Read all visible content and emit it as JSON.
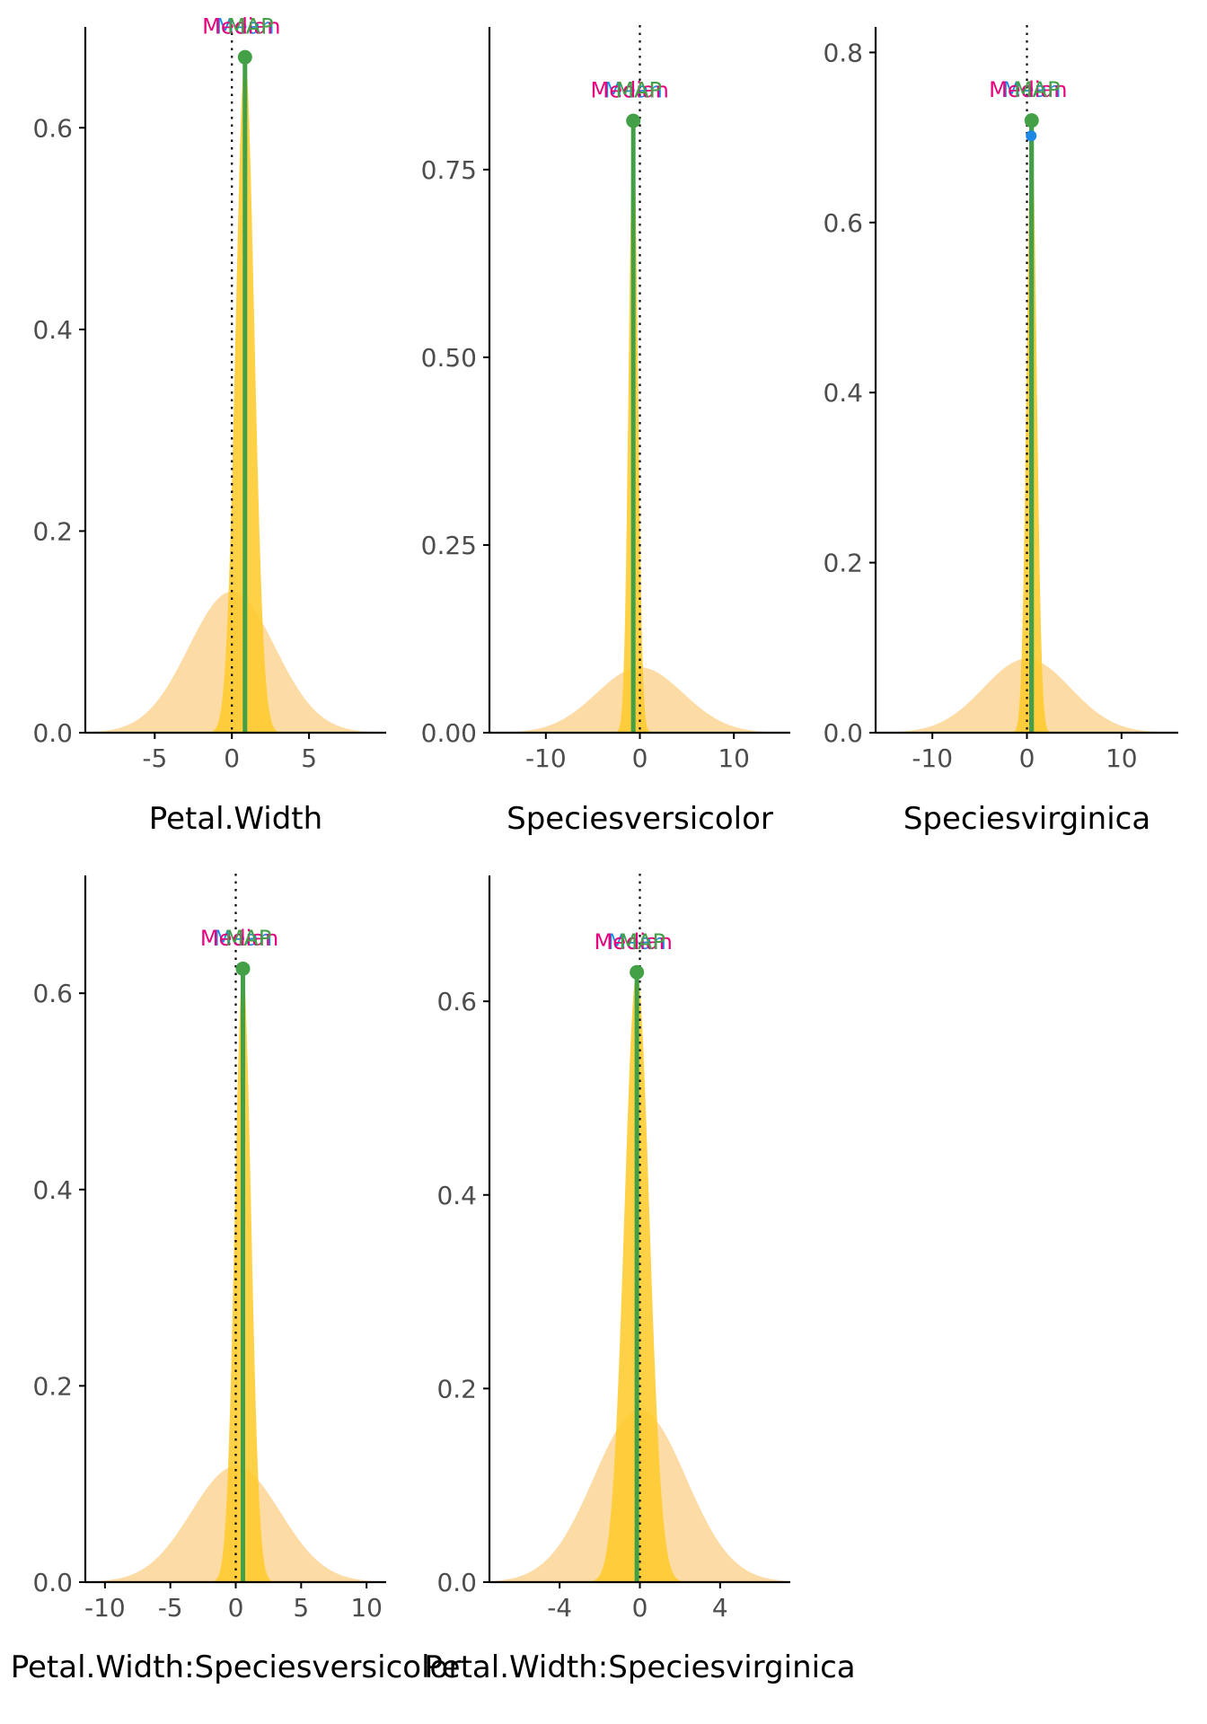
{
  "colors": {
    "prior": "#FDD9A0",
    "posterior": "#FFCB2E",
    "mean": "#E6007E",
    "median": "#1E88E5",
    "map": "#43A047",
    "axis": "#000000",
    "zero_line": "#000000"
  },
  "chart_data": [
    {
      "type": "area",
      "xlabel": "Petal.Width",
      "xlim": [
        -9.5,
        10
      ],
      "ylim": [
        0,
        0.7
      ],
      "xticks": [
        -5,
        0,
        5
      ],
      "xtick_labels": [
        "-5",
        "0",
        "5"
      ],
      "yticks": [
        0,
        0.2,
        0.4,
        0.6
      ],
      "ytick_labels": [
        "0.0",
        "0.2",
        "0.4",
        "0.6"
      ],
      "prior": {
        "center": 0,
        "sd": 2.8,
        "peak": 0.14
      },
      "posterior": {
        "center": 0.85,
        "sd": 0.6,
        "peak": 0.67
      },
      "indicators": {
        "mean": 0.85,
        "median": 0.85,
        "map": 0.85,
        "peak": 0.67
      },
      "indicator_labels": [
        "Mean",
        "Median",
        "MAP"
      ]
    },
    {
      "type": "area",
      "xlabel": "Speciesversicolor",
      "xlim": [
        -16,
        16
      ],
      "ylim": [
        0,
        0.94
      ],
      "xticks": [
        -10,
        0,
        10
      ],
      "xtick_labels": [
        "-10",
        "0",
        "10"
      ],
      "yticks": [
        0,
        0.25,
        0.5,
        0.75
      ],
      "ytick_labels": [
        "0.00",
        "0.25",
        "0.50",
        "0.75"
      ],
      "prior": {
        "center": 0,
        "sd": 4.6,
        "peak": 0.087
      },
      "posterior": {
        "center": -0.7,
        "sd": 0.48,
        "peak": 0.815
      },
      "indicators": {
        "mean": -0.7,
        "median": -0.7,
        "map": -0.7,
        "peak": 0.815
      },
      "indicator_labels": [
        "Mean",
        "Median",
        "MAP"
      ]
    },
    {
      "type": "area",
      "xlabel": "Speciesvirginica",
      "xlim": [
        -16,
        16
      ],
      "ylim": [
        0,
        0.83
      ],
      "xticks": [
        -10,
        0,
        10
      ],
      "xtick_labels": [
        "-10",
        "0",
        "10"
      ],
      "yticks": [
        0,
        0.2,
        0.4,
        0.6,
        0.8
      ],
      "ytick_labels": [
        "0.0",
        "0.2",
        "0.4",
        "0.6",
        "0.8"
      ],
      "prior": {
        "center": 0,
        "sd": 4.6,
        "peak": 0.087
      },
      "posterior": {
        "center": 0.5,
        "sd": 0.52,
        "peak": 0.72
      },
      "indicators": {
        "mean": 0.45,
        "median": 0.45,
        "map": 0.5,
        "peak": 0.72
      },
      "indicator_labels": [
        "Mean",
        "Median",
        "MAP"
      ]
    },
    {
      "type": "area",
      "xlabel": "Petal.Width:Speciesversicolor",
      "xlim": [
        -11.5,
        11.5
      ],
      "ylim": [
        0,
        0.72
      ],
      "xticks": [
        -10,
        -5,
        0,
        5,
        10
      ],
      "xtick_labels": [
        "-10",
        "-5",
        "0",
        "5",
        "10"
      ],
      "yticks": [
        0,
        0.2,
        0.4,
        0.6
      ],
      "ytick_labels": [
        "0.0",
        "0.2",
        "0.4",
        "0.6"
      ],
      "prior": {
        "center": 0,
        "sd": 3.4,
        "peak": 0.118
      },
      "posterior": {
        "center": 0.55,
        "sd": 0.62,
        "peak": 0.625
      },
      "indicators": {
        "mean": 0.55,
        "median": 0.55,
        "map": 0.55,
        "peak": 0.625
      },
      "indicator_labels": [
        "Mean",
        "Median",
        "MAP"
      ]
    },
    {
      "type": "area",
      "xlabel": "Petal.Width:Speciesvirginica",
      "xlim": [
        -7.5,
        7.5
      ],
      "ylim": [
        0,
        0.73
      ],
      "xticks": [
        -4,
        0,
        4
      ],
      "xtick_labels": [
        "-4",
        "0",
        "4"
      ],
      "yticks": [
        0,
        0.2,
        0.4,
        0.6
      ],
      "ytick_labels": [
        "0.0",
        "0.2",
        "0.4",
        "0.6"
      ],
      "prior": {
        "center": 0,
        "sd": 2.3,
        "peak": 0.178
      },
      "posterior": {
        "center": -0.15,
        "sd": 0.62,
        "peak": 0.63
      },
      "indicators": {
        "mean": -0.15,
        "median": -0.15,
        "map": -0.15,
        "peak": 0.63
      },
      "indicator_labels": [
        "Mean",
        "Median",
        "MAP"
      ]
    }
  ]
}
